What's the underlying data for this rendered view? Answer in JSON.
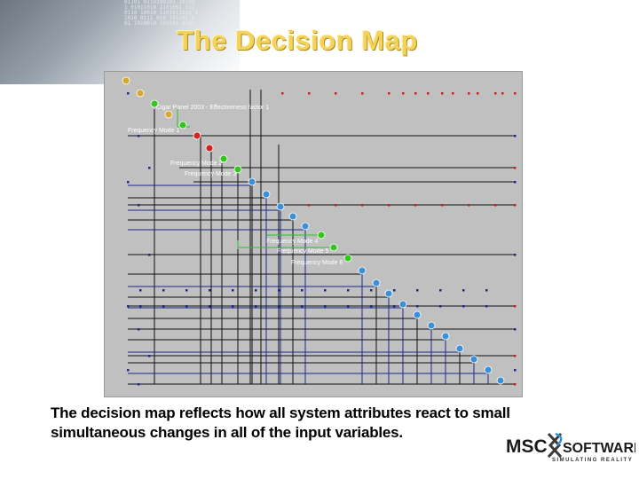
{
  "slide": {
    "title": "The Decision Map",
    "caption": "The decision map reflects how all system attributes react to small simultaneous changes in all of the input variables."
  },
  "map": {
    "labels": [
      "Cigar Panel 2003 - Effectiveness factor 1",
      "Frequency Mode 1",
      "Frequency Mode 2",
      "Frequency Mode 3",
      "Frequency Mode 4",
      "Frequency Mode 5",
      "Frequency Mode 6"
    ],
    "colors": {
      "background": "#c0c0c0",
      "black_line": "#111111",
      "blue_line": "#1c2a8a",
      "green_line": "#2ec02e",
      "blue_node": "#3d90d6",
      "green_node": "#35c51f",
      "red_node": "#d62222",
      "gold_node": "#d9a62e"
    }
  },
  "logo": {
    "left": "MSC",
    "right": "SOFTWARE",
    "tagline": "SIMULATING REALITY"
  }
}
